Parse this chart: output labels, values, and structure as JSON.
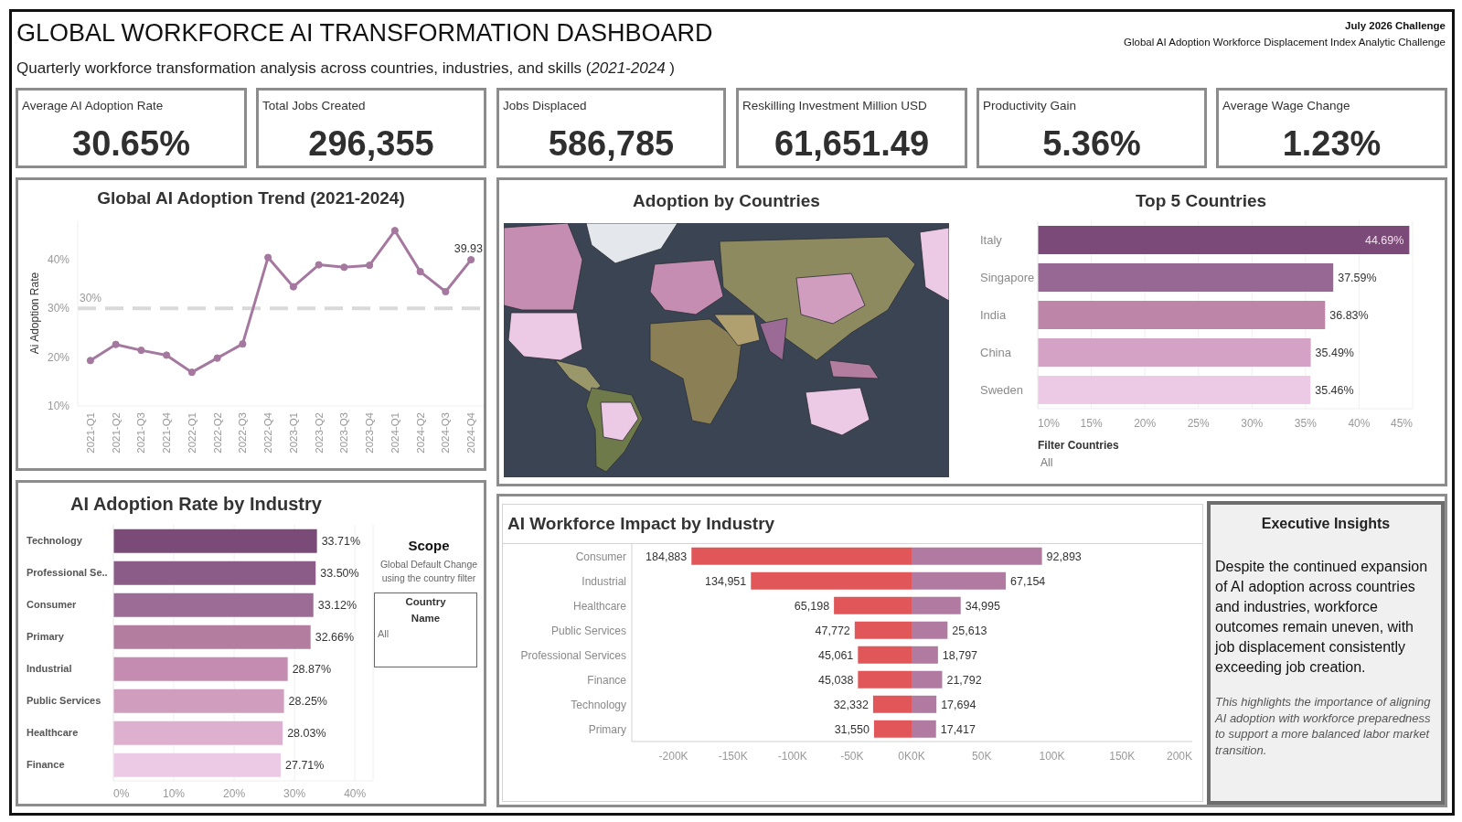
{
  "chart_data": [
    {
      "type": "other",
      "title": "GLOBAL WORKFORCE AI TRANSFORMATION DASHBOARD",
      "subtitle": "Quarterly workforce transformation analysis across countries, industries, and skills (2021-2024 )",
      "annotations": [
        "July 2026 Challenge",
        "Global AI Adoption Workforce Displacement Index Analytic Challenge"
      ]
    },
    {
      "type": "other",
      "title": "Average AI Adoption Rate",
      "annotations": [
        "30.65%"
      ]
    },
    {
      "type": "other",
      "title": "Total Jobs Created",
      "annotations": [
        "296,355"
      ]
    },
    {
      "type": "other",
      "title": "Jobs Displaced",
      "annotations": [
        "586,785"
      ]
    },
    {
      "type": "other",
      "title": "Reskilling Investment Million USD",
      "annotations": [
        "61,651.49"
      ]
    },
    {
      "type": "other",
      "title": "Productivity Gain",
      "annotations": [
        "5.36%"
      ]
    },
    {
      "type": "other",
      "title": "Average Wage Change",
      "annotations": [
        "1.23%"
      ]
    },
    {
      "type": "line",
      "title": "Global AI Adoption Trend (2021-2024)",
      "ylabel": "Ai Adoption Rate",
      "categories": [
        "2021-Q1",
        "2021-Q2",
        "2021-Q3",
        "2021-Q4",
        "2022-Q1",
        "2022-Q2",
        "2022-Q3",
        "2022-Q4",
        "2023-Q1",
        "2023-Q2",
        "2023-Q3",
        "2023-Q4",
        "2024-Q1",
        "2024-Q2",
        "2024-Q3",
        "2024-Q4"
      ],
      "values": [
        19.3,
        22.6,
        21.4,
        20.4,
        16.9,
        19.8,
        22.7,
        40.4,
        34.4,
        38.9,
        38.4,
        38.8,
        45.9,
        37.5,
        33.4,
        39.93
      ],
      "color": "#a5789f",
      "marker": "circle",
      "value_labels": [
        null,
        null,
        null,
        null,
        null,
        null,
        null,
        null,
        null,
        null,
        null,
        null,
        null,
        null,
        null,
        "39.93"
      ],
      "ylim": [
        10,
        48
      ],
      "yticks": [
        {
          "value": 10,
          "label": "10%"
        },
        {
          "value": 20,
          "label": "20%"
        },
        {
          "value": 30,
          "label": "30%"
        },
        {
          "value": 40,
          "label": "40%"
        }
      ],
      "ref_lines": [
        {
          "axis": "y",
          "value": 30,
          "label": "30%",
          "color": "#d9d9d9",
          "line_style": "dashed"
        }
      ]
    },
    {
      "type": "other",
      "title": "Adoption by Countries"
    },
    {
      "type": "bar",
      "orientation": "horizontal",
      "title": "Top 5 Countries",
      "categories": [
        "Italy",
        "Singapore",
        "India",
        "China",
        "Sweden"
      ],
      "values": [
        44.69,
        37.59,
        36.83,
        35.49,
        35.46
      ],
      "colors": [
        "#7b4a78",
        "#976894",
        "#bd85a8",
        "#d4a2c5",
        "#ecc9e4"
      ],
      "value_labels": [
        "44.69%",
        "37.59%",
        "36.83%",
        "35.49%",
        "35.46%"
      ],
      "xlim": [
        10,
        45
      ],
      "xticks": [
        {
          "value": 10,
          "label": "10%"
        },
        {
          "value": 15,
          "label": "15%"
        },
        {
          "value": 20,
          "label": "20%"
        },
        {
          "value": 25,
          "label": "25%"
        },
        {
          "value": 30,
          "label": "30%"
        },
        {
          "value": 35,
          "label": "35%"
        },
        {
          "value": 40,
          "label": "40%"
        },
        {
          "value": 45,
          "label": "45%"
        }
      ],
      "grid": "x",
      "annotations": [
        "Filter Countries",
        "All"
      ]
    },
    {
      "type": "bar",
      "orientation": "horizontal",
      "title": "AI Adoption Rate by Industry",
      "categories": [
        "Technology",
        "Professional Se..",
        "Consumer",
        "Primary",
        "Industrial",
        "Public Services",
        "Healthcare",
        "Finance"
      ],
      "values": [
        33.71,
        33.5,
        33.12,
        32.66,
        28.87,
        28.25,
        28.03,
        27.71
      ],
      "colors": [
        "#7b4b78",
        "#8b5c88",
        "#9c6b96",
        "#b27d9f",
        "#c48cb0",
        "#d09dbf",
        "#ddb0d0",
        "#ecc9e4"
      ],
      "value_labels": [
        "33.71%",
        "33.50%",
        "33.12%",
        "32.66%",
        "28.87%",
        "28.25%",
        "28.03%",
        "27.71%"
      ],
      "xlim": [
        0,
        43
      ],
      "xticks": [
        {
          "value": 0,
          "label": "0%"
        },
        {
          "value": 10,
          "label": "10%"
        },
        {
          "value": 20,
          "label": "20%"
        },
        {
          "value": 30,
          "label": "30%"
        },
        {
          "value": 40,
          "label": "40%"
        }
      ],
      "grid": "x"
    },
    {
      "type": "other",
      "title": "Scope",
      "subtitle": "Global Default Change using the country filter",
      "annotations": [
        "Country Name",
        "All"
      ]
    },
    {
      "type": "bar",
      "orientation": "horizontal",
      "title": "AI Workforce Impact by Industry",
      "categories": [
        "Consumer",
        "Industrial",
        "Healthcare",
        "Public Services",
        "Professional Services",
        "Finance",
        "Technology",
        "Primary"
      ],
      "values": [
        184883,
        134951,
        65198,
        47772,
        45061,
        45038,
        32332,
        31550
      ],
      "base": [
        -184883,
        -134951,
        -65198,
        -47772,
        -45061,
        -45038,
        -32332,
        -31550
      ],
      "color": "#e15759",
      "value_labels": [
        "184,883",
        "134,951",
        "65,198",
        "47,772",
        "45,061",
        "45,038",
        "32,332",
        "31,550"
      ],
      "xlim": [
        -235000,
        0
      ],
      "xticks": [
        {
          "value": -200000,
          "label": "-200K"
        },
        {
          "value": -150000,
          "label": "-150K"
        },
        {
          "value": -100000,
          "label": "-100K"
        },
        {
          "value": -50000,
          "label": "-50K"
        },
        {
          "value": 0,
          "label": "0K"
        }
      ]
    },
    {
      "type": "bar",
      "orientation": "horizontal",
      "categories": [
        null,
        null,
        null,
        null,
        null,
        null,
        null,
        null
      ],
      "values": [
        92893,
        67154,
        34995,
        25613,
        18797,
        21792,
        17694,
        17417
      ],
      "color": "#b07aa1",
      "value_labels": [
        "92,893",
        "67,154",
        "34,995",
        "25,613",
        "18,797",
        "21,792",
        "17,694",
        "17,417"
      ],
      "xlim": [
        0,
        200000
      ],
      "xticks": [
        {
          "value": 0,
          "label": "0K"
        },
        {
          "value": 50000,
          "label": "50K"
        },
        {
          "value": 100000,
          "label": "100K"
        },
        {
          "value": 150000,
          "label": "150K"
        },
        {
          "value": 200000,
          "label": "200K"
        }
      ],
      "tick_labels": "x"
    },
    {
      "type": "other",
      "title": "Executive Insights",
      "annotations": [
        "Despite the continued expansion of AI adoption across countries and industries, workforce outcomes remain uneven, with job displacement consistently exceeding job creation.",
        "This highlights the importance of aligning AI adoption with workforce preparedness to support a more balanced labor market transition."
      ]
    }
  ]
}
